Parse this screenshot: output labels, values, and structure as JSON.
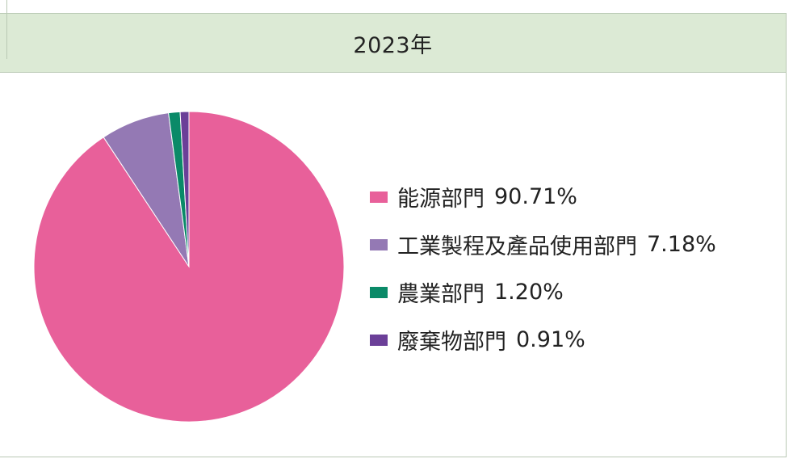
{
  "header": {
    "title": "2023年"
  },
  "chart_data": {
    "type": "pie",
    "title": "2023年",
    "series": [
      {
        "name": "能源部門",
        "value": 90.71,
        "label": "90.71%",
        "color": "#e8609a"
      },
      {
        "name": "工業製程及產品使用部門",
        "value": 7.18,
        "label": "7.18%",
        "color": "#9479b4"
      },
      {
        "name": "農業部門",
        "value": 1.2,
        "label": "1.20%",
        "color": "#0a8a68"
      },
      {
        "name": "廢棄物部門",
        "value": 0.91,
        "label": "0.91%",
        "color": "#6b3f98"
      }
    ],
    "legend": "right"
  }
}
